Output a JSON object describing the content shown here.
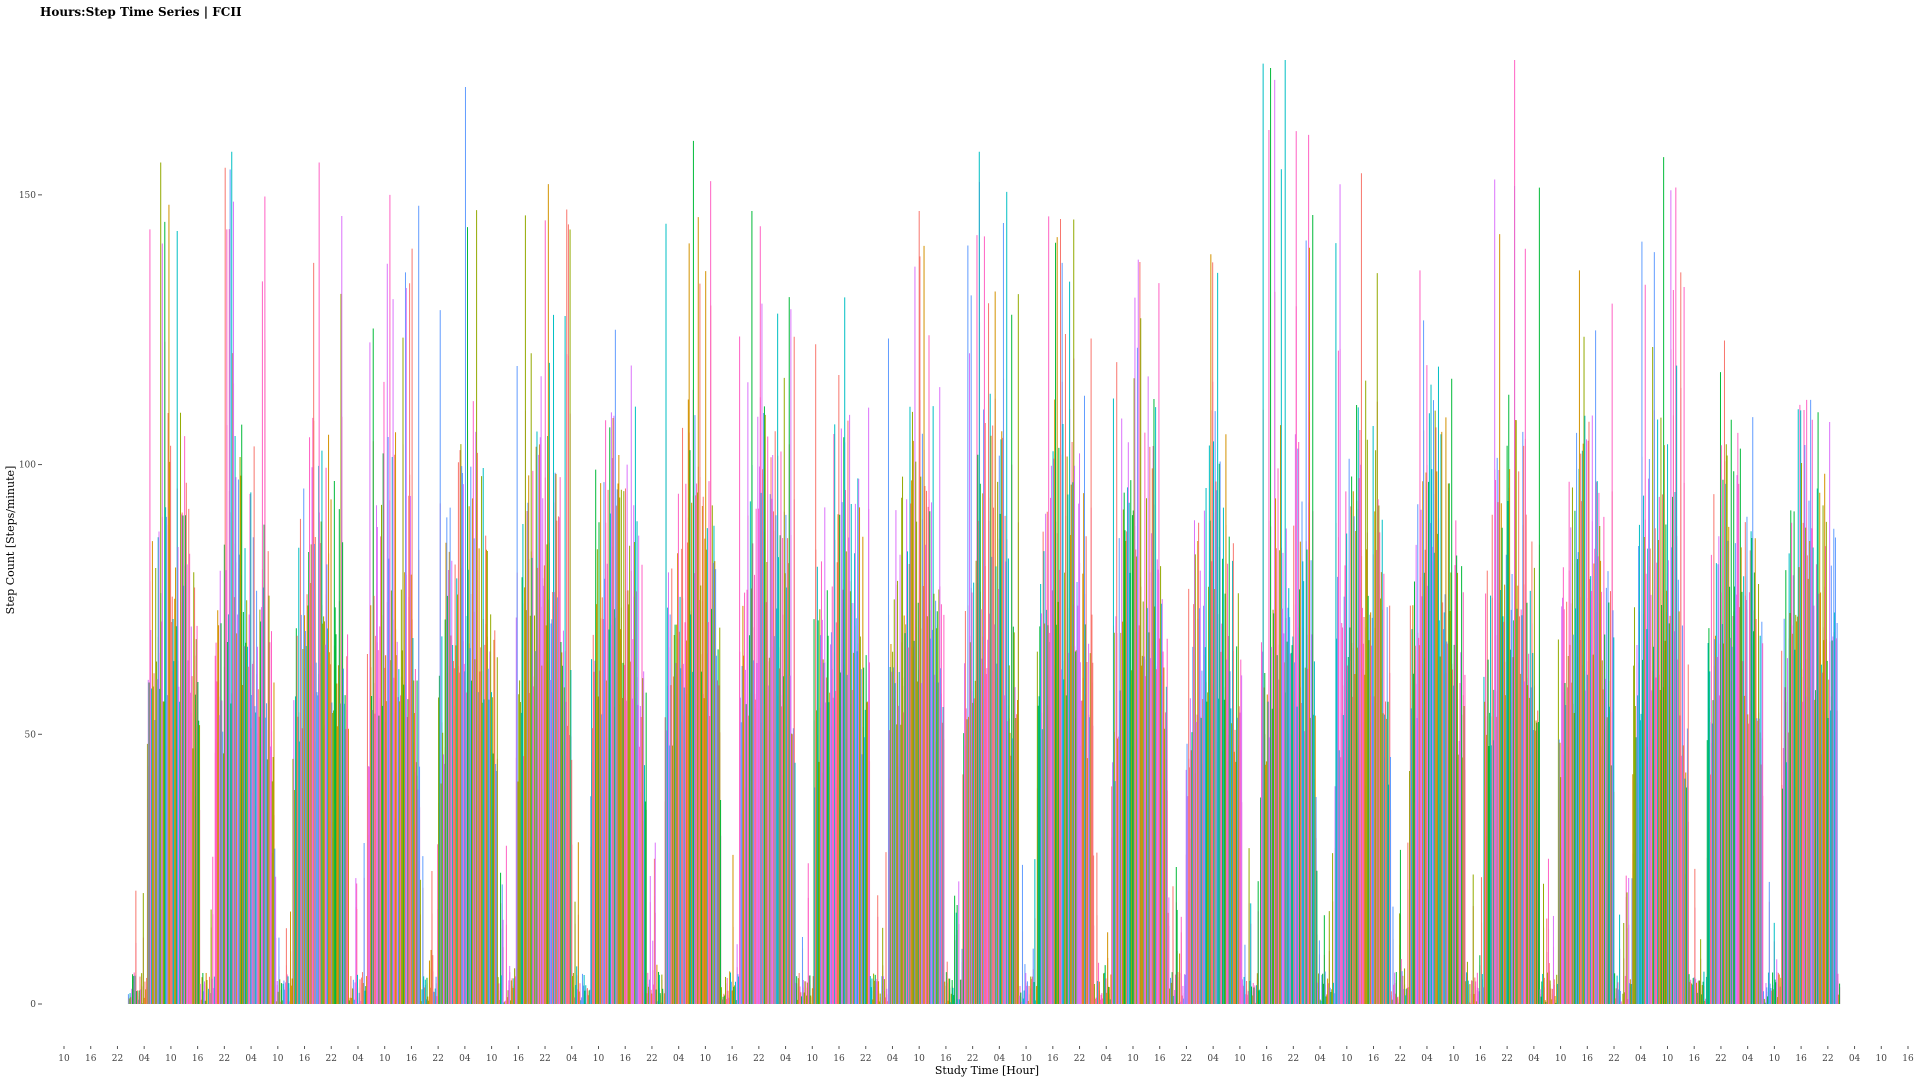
{
  "chart_data": {
    "type": "bar",
    "title": "Hours:Step Time Series | FCII",
    "xlabel": "Study Time [Hour]",
    "ylabel": "Step Count [Steps/minute]",
    "ylim": [
      0,
      175
    ],
    "y_ticks": [
      0,
      50,
      100,
      150
    ],
    "x_tick_labels": [
      "10",
      "16",
      "22",
      "04",
      "10",
      "16",
      "22",
      "04",
      "10",
      "16",
      "22",
      "04",
      "10",
      "16",
      "22",
      "04",
      "10",
      "16",
      "22",
      "04",
      "10",
      "16",
      "22",
      "04",
      "10",
      "16",
      "22",
      "04",
      "10",
      "16",
      "22",
      "04",
      "10",
      "16",
      "22",
      "04",
      "10",
      "16",
      "22",
      "04",
      "10",
      "16",
      "22",
      "04",
      "10",
      "16",
      "22",
      "04",
      "10",
      "16",
      "22",
      "04",
      "10",
      "16",
      "22",
      "04",
      "10",
      "16",
      "22",
      "04",
      "10",
      "16",
      "22",
      "04",
      "10",
      "16",
      "22",
      "04",
      "10",
      "16"
    ],
    "series_colors": [
      "#F8766D",
      "#FF61C3",
      "#DB72FB",
      "#00BA38",
      "#00BFC4",
      "#619CFF",
      "#D39200",
      "#93AA00"
    ],
    "grid": false,
    "legend": "none",
    "days": [
      {
        "active": [
          3,
          7
        ],
        "start_hour": 6,
        "end_hour": 23,
        "peak": 156
      },
      {
        "active": [
          7,
          23
        ],
        "start_hour": 4,
        "end_hour": 23,
        "peak": 158
      },
      {
        "active": [
          7,
          23
        ],
        "start_hour": 5,
        "end_hour": 23,
        "peak": 156
      },
      {
        "active": [
          7,
          23
        ],
        "start_hour": 5,
        "end_hour": 22,
        "peak": 150
      },
      {
        "active": [
          7,
          23
        ],
        "start_hour": 4,
        "end_hour": 23,
        "peak": 170
      },
      {
        "active": [
          7,
          23
        ],
        "start_hour": 5,
        "end_hour": 23,
        "peak": 152
      },
      {
        "active": [
          7,
          23
        ],
        "start_hour": 5,
        "end_hour": 23,
        "peak": 125
      },
      {
        "active": [
          7,
          23
        ],
        "start_hour": 5,
        "end_hour": 23,
        "peak": 160
      },
      {
        "active": [
          7,
          23
        ],
        "start_hour": 5,
        "end_hour": 23,
        "peak": 147
      },
      {
        "active": [
          7,
          23
        ],
        "start_hour": 5,
        "end_hour": 23,
        "peak": 131
      },
      {
        "active": [
          7,
          23
        ],
        "start_hour": 5,
        "end_hour": 23,
        "peak": 147
      },
      {
        "active": [
          7,
          23
        ],
        "start_hour": 5,
        "end_hour": 23,
        "peak": 158
      },
      {
        "active": [
          7,
          23
        ],
        "start_hour": 5,
        "end_hour": 23,
        "peak": 146
      },
      {
        "active": [
          7,
          23
        ],
        "start_hour": 5,
        "end_hour": 23,
        "peak": 138
      },
      {
        "active": [
          7,
          23
        ],
        "start_hour": 5,
        "end_hour": 23,
        "peak": 139
      },
      {
        "active": [
          7,
          23
        ],
        "start_hour": 5,
        "end_hour": 23,
        "peak": 175
      },
      {
        "active": [
          7,
          23
        ],
        "start_hour": 5,
        "end_hour": 23,
        "peak": 154
      },
      {
        "active": [
          7,
          23
        ],
        "start_hour": 5,
        "end_hour": 23,
        "peak": 136
      },
      {
        "active": [
          7,
          23
        ],
        "start_hour": 5,
        "end_hour": 23,
        "peak": 175
      },
      {
        "active": [
          7,
          23
        ],
        "start_hour": 5,
        "end_hour": 23,
        "peak": 136
      },
      {
        "active": [
          7,
          23
        ],
        "start_hour": 5,
        "end_hour": 23,
        "peak": 157
      },
      {
        "active": [
          7,
          23
        ],
        "start_hour": 5,
        "end_hour": 23,
        "peak": 123
      },
      {
        "active": [
          7,
          23
        ],
        "start_hour": 5,
        "end_hour": 23,
        "peak": 112
      }
    ],
    "typical_level": [
      10,
      95
    ]
  }
}
